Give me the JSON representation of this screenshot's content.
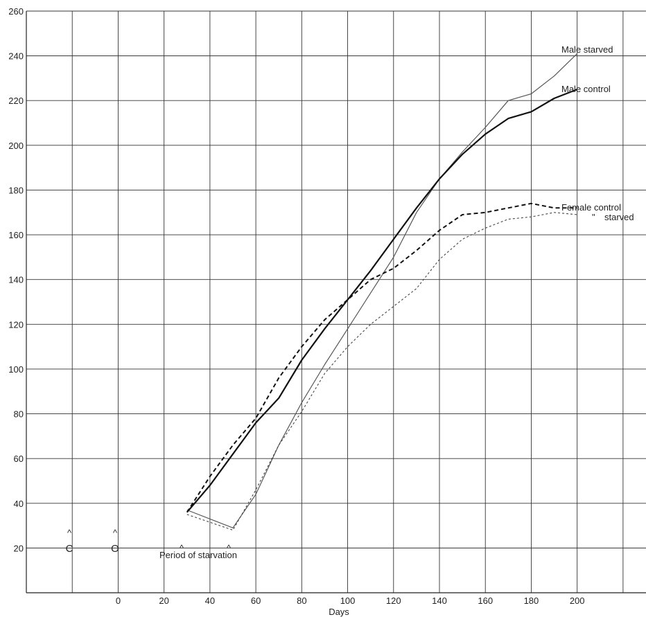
{
  "chart_data": {
    "type": "line",
    "xlabel": "Days",
    "ylabel": "",
    "xlim": [
      -40,
      230
    ],
    "ylim": [
      0,
      260
    ],
    "x_ticks": [
      0,
      20,
      40,
      60,
      80,
      100,
      120,
      140,
      160,
      180,
      200
    ],
    "y_ticks": [
      20,
      40,
      60,
      80,
      100,
      120,
      140,
      160,
      180,
      200,
      220,
      240,
      260
    ],
    "grid": true,
    "series": [
      {
        "name": "Male starved",
        "style": "solid-thin",
        "color": "#555555",
        "points": [
          [
            30,
            37
          ],
          [
            50,
            29
          ],
          [
            60,
            44
          ],
          [
            70,
            66
          ],
          [
            80,
            85
          ],
          [
            90,
            102
          ],
          [
            100,
            118
          ],
          [
            110,
            134
          ],
          [
            120,
            150
          ],
          [
            130,
            170
          ],
          [
            140,
            185
          ],
          [
            150,
            197
          ],
          [
            160,
            208
          ],
          [
            170,
            220
          ],
          [
            180,
            223
          ],
          [
            190,
            231
          ],
          [
            200,
            241
          ]
        ]
      },
      {
        "name": "Male control",
        "style": "solid-thick",
        "color": "#111111",
        "points": [
          [
            30,
            36
          ],
          [
            40,
            48
          ],
          [
            50,
            62
          ],
          [
            60,
            76
          ],
          [
            70,
            87
          ],
          [
            80,
            104
          ],
          [
            90,
            118
          ],
          [
            100,
            131
          ],
          [
            110,
            144
          ],
          [
            120,
            158
          ],
          [
            130,
            172
          ],
          [
            140,
            185
          ],
          [
            150,
            196
          ],
          [
            160,
            205
          ],
          [
            170,
            212
          ],
          [
            180,
            215
          ],
          [
            190,
            221
          ],
          [
            200,
            225
          ]
        ]
      },
      {
        "name": "Female control",
        "style": "dashed-thick",
        "color": "#111111",
        "points": [
          [
            30,
            36
          ],
          [
            40,
            52
          ],
          [
            50,
            66
          ],
          [
            60,
            78
          ],
          [
            70,
            96
          ],
          [
            80,
            110
          ],
          [
            90,
            122
          ],
          [
            100,
            131
          ],
          [
            110,
            140
          ],
          [
            120,
            145
          ],
          [
            130,
            153
          ],
          [
            140,
            162
          ],
          [
            150,
            169
          ],
          [
            160,
            170
          ],
          [
            170,
            172
          ],
          [
            180,
            174
          ],
          [
            190,
            172
          ],
          [
            200,
            172
          ]
        ]
      },
      {
        "name": "starved",
        "style": "dashed-thin",
        "color": "#444444",
        "points": [
          [
            30,
            35
          ],
          [
            50,
            28
          ],
          [
            60,
            46
          ],
          [
            70,
            66
          ],
          [
            80,
            81
          ],
          [
            90,
            98
          ],
          [
            100,
            110
          ],
          [
            110,
            120
          ],
          [
            120,
            128
          ],
          [
            130,
            136
          ],
          [
            140,
            149
          ],
          [
            150,
            158
          ],
          [
            160,
            163
          ],
          [
            170,
            167
          ],
          [
            180,
            168
          ],
          [
            190,
            170
          ],
          [
            200,
            169
          ]
        ]
      }
    ],
    "annotations": {
      "male_starved": "Male starved",
      "male_control": "Male control",
      "female_control": "Female control",
      "ditto": "\"",
      "starved": "starved",
      "period": "Period of starvation",
      "marker_c": "C",
      "marker_o": "O",
      "caret": "^"
    }
  }
}
